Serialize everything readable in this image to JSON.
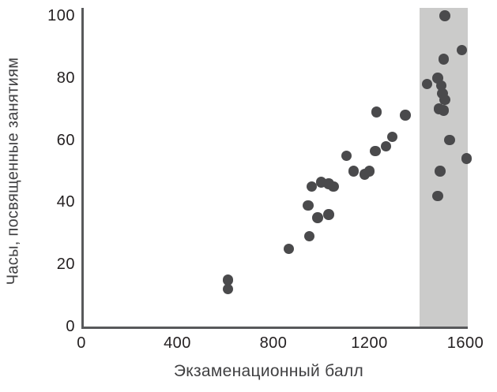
{
  "chart_data": {
    "type": "scatter",
    "title": "",
    "xlabel": "Экзаменационный балл",
    "ylabel": "Часы, посвященные занятиям",
    "xlim": [
      0,
      1600
    ],
    "ylim": [
      0,
      100
    ],
    "x_ticks": [
      0,
      400,
      800,
      1200,
      1600
    ],
    "y_ticks": [
      0,
      20,
      40,
      60,
      80,
      100
    ],
    "grid": false,
    "legend": false,
    "point_color": "#4a4a4c",
    "axis_color": "#58595b",
    "text_color": "#231f20",
    "highlight_band": {
      "x_from": 1400,
      "x_to": 1600,
      "color": "#cbcbca"
    },
    "points": [
      [
        600,
        15
      ],
      [
        600,
        12
      ],
      [
        855,
        25
      ],
      [
        935,
        39
      ],
      [
        940,
        29
      ],
      [
        975,
        35
      ],
      [
        1020,
        36
      ],
      [
        950,
        45
      ],
      [
        990,
        46.5
      ],
      [
        1020,
        46
      ],
      [
        1040,
        45
      ],
      [
        1095,
        55
      ],
      [
        1125,
        50
      ],
      [
        1170,
        49
      ],
      [
        1190,
        50
      ],
      [
        1215,
        56.5
      ],
      [
        1260,
        58
      ],
      [
        1285,
        61
      ],
      [
        1220,
        69
      ],
      [
        1340,
        68
      ],
      [
        1430,
        78
      ],
      [
        1475,
        80
      ],
      [
        1490,
        77.5
      ],
      [
        1495,
        75
      ],
      [
        1505,
        73
      ],
      [
        1480,
        70
      ],
      [
        1500,
        69.5
      ],
      [
        1485,
        50
      ],
      [
        1475,
        42
      ],
      [
        1525,
        60
      ],
      [
        1505,
        100
      ],
      [
        1500,
        86
      ],
      [
        1575,
        89
      ],
      [
        1595,
        54
      ]
    ]
  }
}
